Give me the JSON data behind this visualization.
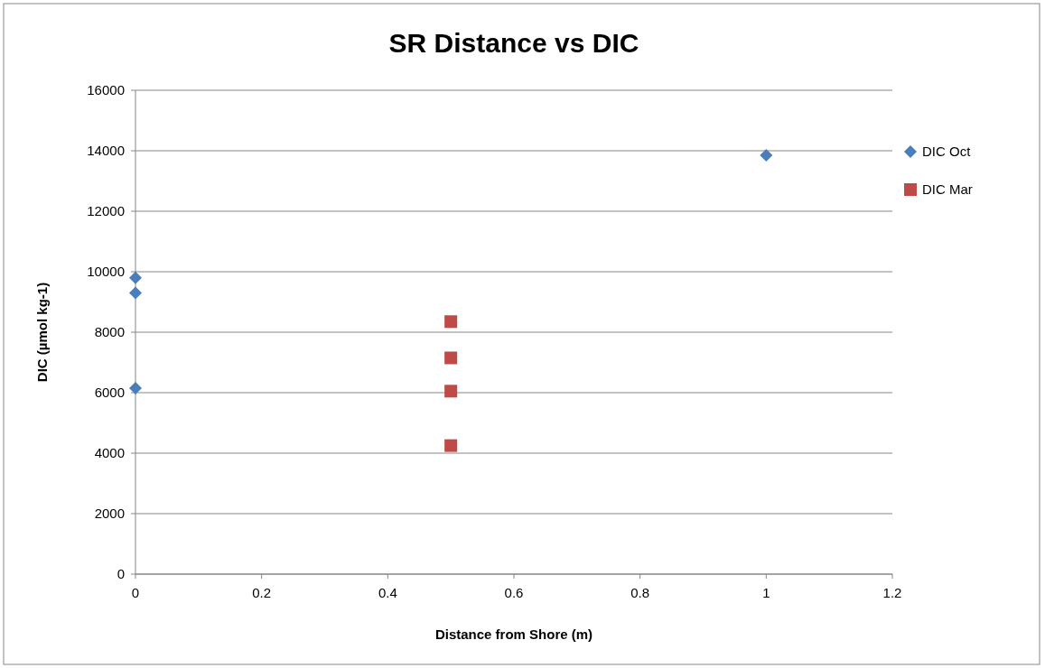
{
  "chart_data": {
    "type": "scatter",
    "title": "SR Distance vs DIC",
    "xlabel": "Distance  from Shore (m)",
    "ylabel": "DIC  (µmol kg-1)",
    "xlim": [
      0,
      1.2
    ],
    "xticks": [
      0,
      0.2,
      0.4,
      0.6,
      0.8,
      1,
      1.2
    ],
    "ylim": [
      0,
      16000
    ],
    "yticks": [
      0,
      2000,
      4000,
      6000,
      8000,
      10000,
      12000,
      14000,
      16000
    ],
    "grid": "y",
    "legend": "right",
    "series": [
      {
        "name": "DIC Oct",
        "color": "#4a7ebb",
        "marker": "diamond",
        "x": [
          0,
          0,
          0,
          1
        ],
        "values": [
          9800,
          9300,
          6150,
          13850
        ]
      },
      {
        "name": "DIC Mar",
        "color": "#be4b48",
        "marker": "square",
        "x": [
          0.5,
          0.5,
          0.5,
          0.5
        ],
        "values": [
          8350,
          7150,
          6050,
          4250
        ]
      }
    ]
  }
}
